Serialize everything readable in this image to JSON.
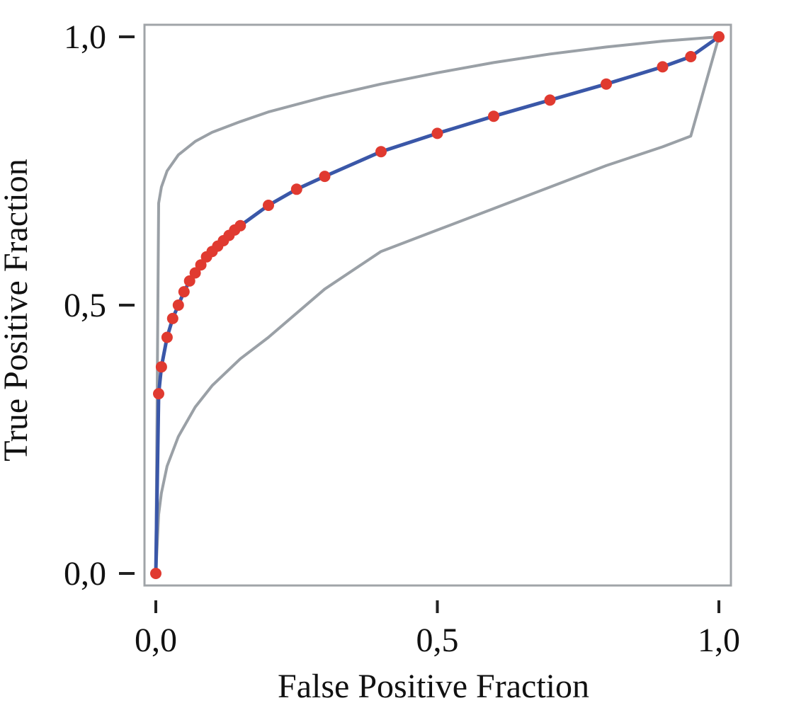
{
  "chart_data": {
    "type": "line",
    "title": "",
    "xlabel": "False Positive Fraction",
    "ylabel": "True Positive Fraction",
    "xlim": [
      0.0,
      1.0
    ],
    "ylim": [
      0.0,
      1.0
    ],
    "x_ticks": [
      {
        "value": 0.0,
        "label": "0,0"
      },
      {
        "value": 0.5,
        "label": "0,5"
      },
      {
        "value": 1.0,
        "label": "1,0"
      }
    ],
    "y_ticks": [
      {
        "value": 0.0,
        "label": "0,0"
      },
      {
        "value": 0.5,
        "label": "0,5"
      },
      {
        "value": 1.0,
        "label": "1,0"
      }
    ],
    "grid": false,
    "legend": "none",
    "colors": {
      "roc_line": "#3a57a8",
      "roc_points": "#e03a30",
      "bounds": "#9aa0a6",
      "frame": "#a0a4a8",
      "ticks": "#222222"
    },
    "series": [
      {
        "role": "roc-curve",
        "x": [
          0.0,
          0.005,
          0.01,
          0.02,
          0.03,
          0.04,
          0.05,
          0.06,
          0.07,
          0.08,
          0.09,
          0.1,
          0.11,
          0.12,
          0.13,
          0.14,
          0.15,
          0.2,
          0.25,
          0.3,
          0.4,
          0.5,
          0.6,
          0.7,
          0.8,
          0.9,
          0.95,
          1.0
        ],
        "y": [
          0.0,
          0.335,
          0.385,
          0.44,
          0.475,
          0.5,
          0.525,
          0.545,
          0.56,
          0.575,
          0.59,
          0.6,
          0.61,
          0.62,
          0.63,
          0.64,
          0.648,
          0.686,
          0.716,
          0.74,
          0.786,
          0.82,
          0.852,
          0.882,
          0.912,
          0.944,
          0.963,
          1.0
        ]
      },
      {
        "role": "upper-bound",
        "x": [
          0.0,
          0.005,
          0.01,
          0.02,
          0.04,
          0.07,
          0.1,
          0.15,
          0.2,
          0.3,
          0.4,
          0.5,
          0.6,
          0.7,
          0.8,
          0.9,
          1.0
        ],
        "y": [
          0.0,
          0.69,
          0.72,
          0.75,
          0.78,
          0.805,
          0.822,
          0.842,
          0.86,
          0.888,
          0.912,
          0.933,
          0.952,
          0.968,
          0.981,
          0.992,
          1.0
        ]
      },
      {
        "role": "lower-bound",
        "x": [
          0.0,
          0.005,
          0.01,
          0.02,
          0.04,
          0.07,
          0.1,
          0.15,
          0.2,
          0.3,
          0.4,
          0.5,
          0.6,
          0.7,
          0.8,
          0.9,
          0.95,
          1.0
        ],
        "y": [
          0.0,
          0.11,
          0.15,
          0.2,
          0.255,
          0.31,
          0.35,
          0.4,
          0.44,
          0.53,
          0.6,
          0.64,
          0.68,
          0.72,
          0.76,
          0.795,
          0.815,
          1.0
        ]
      }
    ]
  }
}
